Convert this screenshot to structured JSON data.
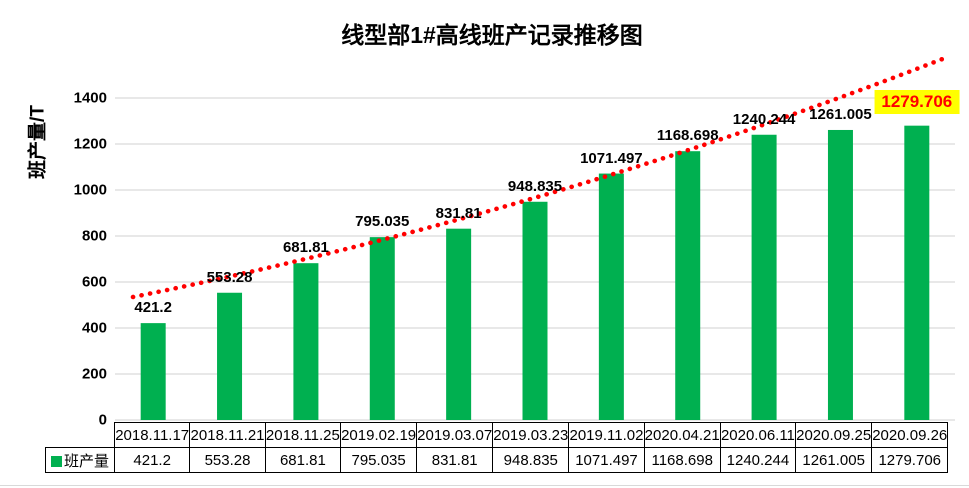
{
  "title": "线型部1#高线班产记录推移图",
  "chart_data": {
    "type": "bar",
    "title": "线型部1#高线班产记录推移图",
    "xlabel": "",
    "ylabel": "班产量/T",
    "series_name": "班产量",
    "categories": [
      "2018.11.17",
      "2018.11.21",
      "2018.11.25",
      "2019.02.19",
      "2019.03.07",
      "2019.03.23",
      "2019.11.02",
      "2020.04.21",
      "2020.06.11",
      "2020.09.25",
      "2020.09.26"
    ],
    "values": [
      421.2,
      553.28,
      681.81,
      795.035,
      831.81,
      948.835,
      1071.497,
      1168.698,
      1240.244,
      1261.005,
      1279.706
    ],
    "value_labels": [
      "421.2",
      "553.28",
      "681.81",
      "795.035",
      "831.81",
      "948.835",
      "1071.497",
      "1168.698",
      "1240.244",
      "1261.005",
      "1279.706"
    ],
    "ylim": [
      0,
      1500
    ],
    "yticks": [
      0,
      200,
      400,
      600,
      800,
      1000,
      1200,
      1400
    ],
    "grid": true,
    "legend_position": "data-table-left",
    "bar_color": "#00B050",
    "gridline_color": "#D9D9D9",
    "trendline": {
      "style": "dotted",
      "color": "#FF0000"
    },
    "last_label_highlight": {
      "background": "#FFFF00",
      "text_color": "#FF0000"
    }
  },
  "table": {
    "legend_label": "班产量"
  }
}
